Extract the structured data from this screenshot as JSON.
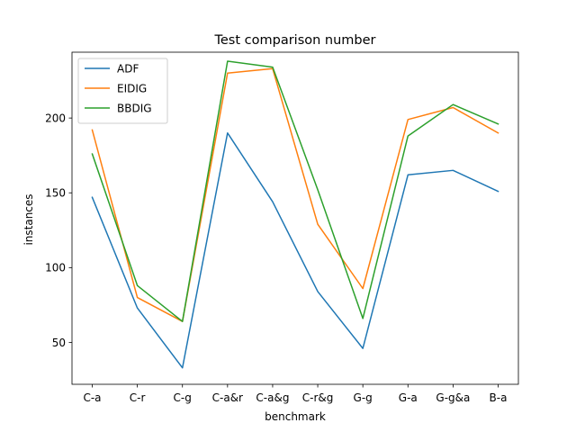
{
  "chart_data": {
    "type": "line",
    "title": "Test comparison number",
    "xlabel": "benchmark",
    "ylabel": "instances",
    "categories": [
      "C-a",
      "C-r",
      "C-g",
      "C-a&r",
      "C-a&g",
      "C-r&g",
      "G-g",
      "G-a",
      "G-g&a",
      "B-a"
    ],
    "ylim": [
      22,
      244
    ],
    "yticks": [
      50,
      100,
      150,
      200
    ],
    "grid": false,
    "legend_position": "upper left",
    "series": [
      {
        "name": "ADF",
        "color": "#1f77b4",
        "values": [
          147,
          73,
          33,
          190,
          144,
          84,
          46,
          162,
          165,
          151
        ]
      },
      {
        "name": "EIDIG",
        "color": "#ff7f0e",
        "values": [
          192,
          80,
          64,
          230,
          233,
          129,
          86,
          199,
          207,
          190
        ]
      },
      {
        "name": "BBDIG",
        "color": "#2ca02c",
        "values": [
          176,
          88,
          64,
          238,
          234,
          152,
          66,
          188,
          209,
          196
        ]
      }
    ]
  }
}
